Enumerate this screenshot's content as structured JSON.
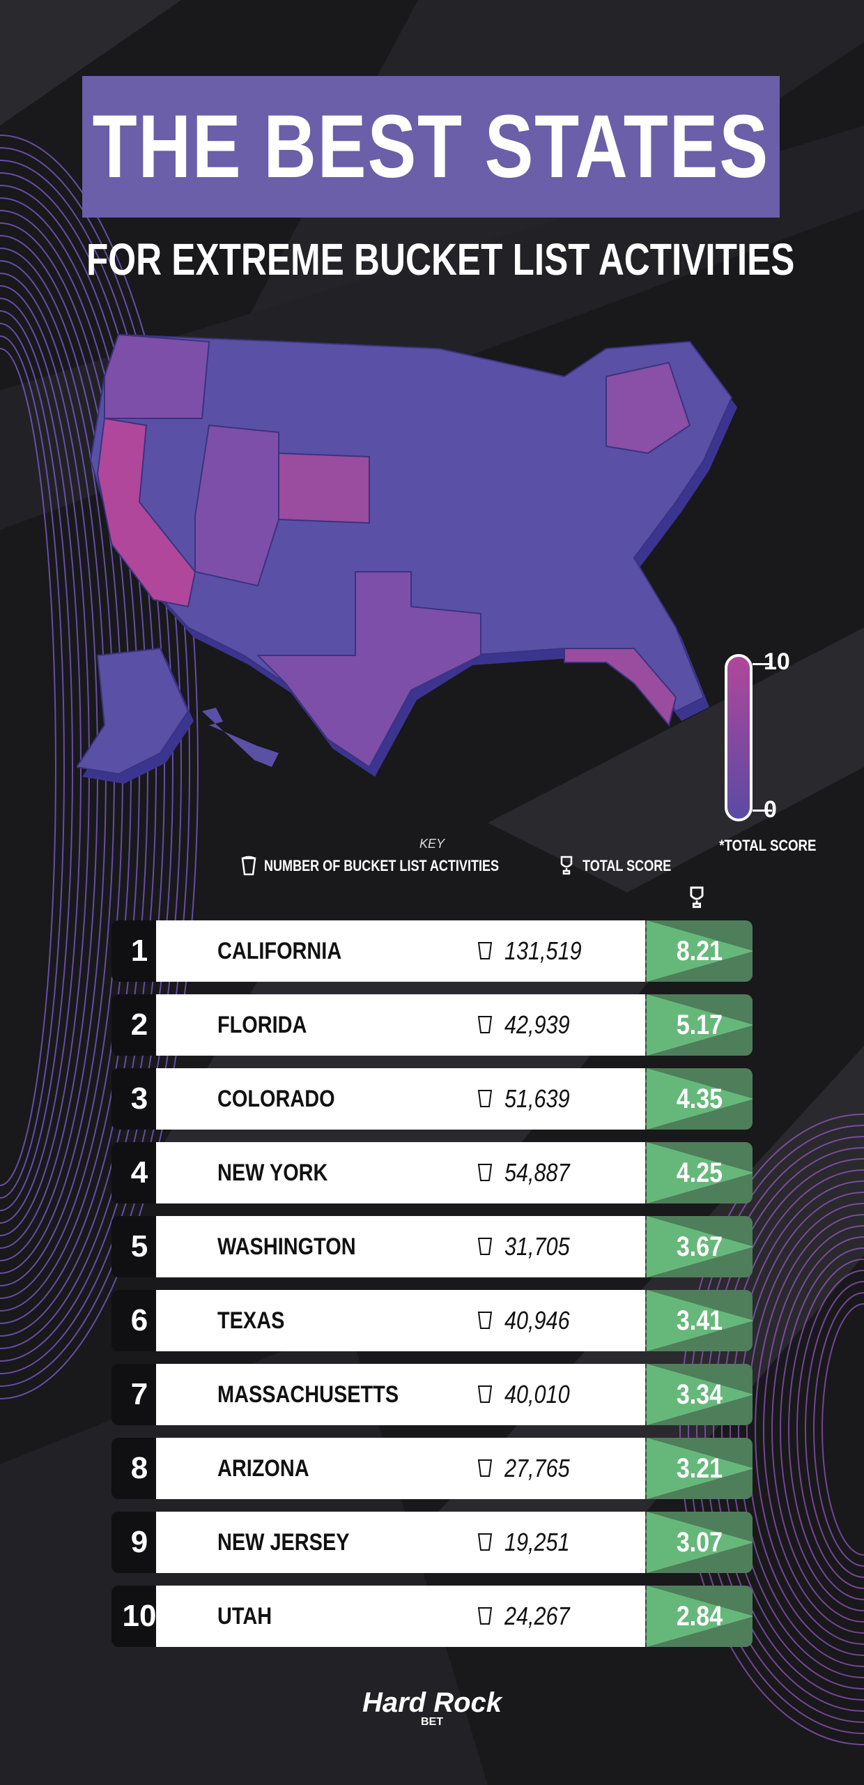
{
  "header": {
    "title": "THE BEST STATES",
    "subtitle": "FOR EXTREME BUCKET LIST ACTIVITIES"
  },
  "map_legend": {
    "max": "10",
    "min": "0",
    "note": "*TOTAL SCORE",
    "gradient": [
      "#b0479a",
      "#5a4aa4"
    ]
  },
  "key": {
    "title": "KEY",
    "bucket_label": "NUMBER OF BUCKET LIST ACTIVITIES",
    "score_label": "TOTAL SCORE"
  },
  "colors": {
    "title_bg": "#6a5fa8",
    "score_bg": "#4e7e5a",
    "score_light": "#66b87a",
    "bg": "#19181b"
  },
  "chart_data": {
    "type": "table",
    "columns": [
      "Rank",
      "State",
      "Number of bucket list activities",
      "Total score"
    ],
    "rows": [
      {
        "rank": "1",
        "state": "CALIFORNIA",
        "activities": "131,519",
        "score": "8.21"
      },
      {
        "rank": "2",
        "state": "FLORIDA",
        "activities": "42,939",
        "score": "5.17"
      },
      {
        "rank": "3",
        "state": "COLORADO",
        "activities": "51,639",
        "score": "4.35"
      },
      {
        "rank": "4",
        "state": "NEW YORK",
        "activities": "54,887",
        "score": "4.25"
      },
      {
        "rank": "5",
        "state": "WASHINGTON",
        "activities": "31,705",
        "score": "3.67"
      },
      {
        "rank": "6",
        "state": "TEXAS",
        "activities": "40,946",
        "score": "3.41"
      },
      {
        "rank": "7",
        "state": "MASSACHUSETTS",
        "activities": "40,010",
        "score": "3.34"
      },
      {
        "rank": "8",
        "state": "ARIZONA",
        "activities": "27,765",
        "score": "3.21"
      },
      {
        "rank": "9",
        "state": "NEW JERSEY",
        "activities": "19,251",
        "score": "3.07"
      },
      {
        "rank": "10",
        "state": "UTAH",
        "activities": "24,267",
        "score": "2.84"
      }
    ]
  },
  "logo": {
    "name": "Hard Rock",
    "sub": "BET"
  }
}
